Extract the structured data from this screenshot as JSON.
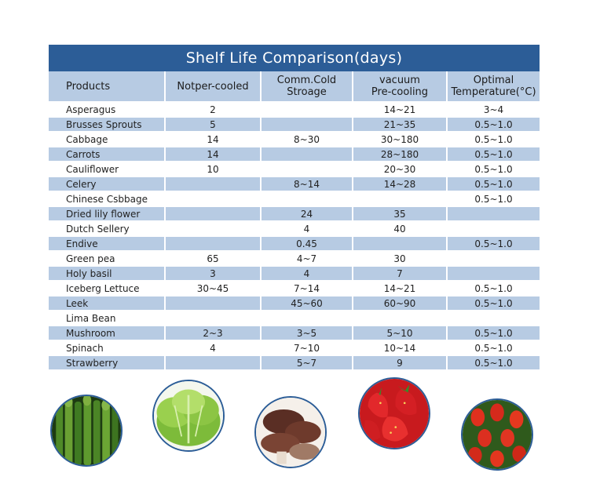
{
  "title": "Shelf Life Comparison(days)",
  "columns": [
    [
      "Products"
    ],
    [
      "Notper-cooled"
    ],
    [
      "Comm.Cold",
      "Stroage"
    ],
    [
      "vacuum",
      "Pre-cooling"
    ],
    [
      "Optimal",
      "Temperature(°C)"
    ]
  ],
  "rows": [
    [
      "Asperagus",
      "2",
      "",
      "14~21",
      "3~4"
    ],
    [
      "Brusses Sprouts",
      "5",
      "",
      "21~35",
      "0.5~1.0"
    ],
    [
      "Cabbage",
      "14",
      "8~30",
      "30~180",
      "0.5~1.0"
    ],
    [
      "Carrots",
      "14",
      "",
      "28~180",
      "0.5~1.0"
    ],
    [
      "Cauliflower",
      "10",
      "",
      "20~30",
      "0.5~1.0"
    ],
    [
      "Celery",
      "",
      "8~14",
      "14~28",
      "0.5~1.0"
    ],
    [
      "Chinese Csbbage",
      "",
      "",
      "",
      "0.5~1.0"
    ],
    [
      "Dried lily flower",
      "",
      "24",
      "35",
      ""
    ],
    [
      "Dutch Sellery",
      "",
      "4",
      "40",
      ""
    ],
    [
      "Endive",
      "",
      "0.45",
      "",
      "0.5~1.0"
    ],
    [
      "Green pea",
      "65",
      "4~7",
      "30",
      ""
    ],
    [
      "Holy basil",
      "3",
      "4",
      "7",
      ""
    ],
    [
      "Iceberg Lettuce",
      "30~45",
      "7~14",
      "14~21",
      "0.5~1.0"
    ],
    [
      "Leek",
      "",
      "45~60",
      "60~90",
      "0.5~1.0"
    ],
    [
      "Lima Bean",
      "",
      "",
      "",
      ""
    ],
    [
      "Mushroom",
      "2~3",
      "3~5",
      "5~10",
      "0.5~1.0"
    ],
    [
      "Spinach",
      "4",
      "7~10",
      "10~14",
      "0.5~1.0"
    ],
    [
      "Strawberry",
      "",
      "5~7",
      "9",
      "0.5~1.0"
    ]
  ],
  "photos": [
    "asparagus",
    "lettuce",
    "mushroom",
    "strawberry",
    "tulips"
  ],
  "colors": {
    "header": "#2c5d97",
    "band": "#b7cbe3"
  }
}
